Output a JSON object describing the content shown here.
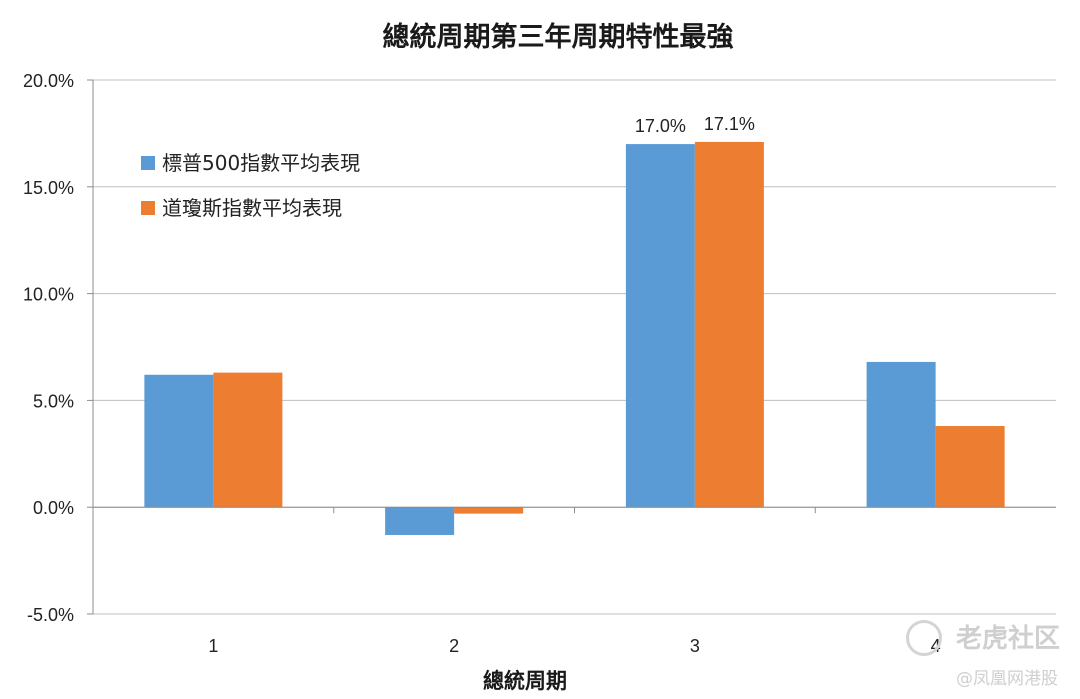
{
  "chart_data": {
    "type": "bar",
    "title": "總統周期第三年周期特性最強",
    "xlabel": "總統周期",
    "ylabel": "",
    "categories": [
      "1",
      "2",
      "3",
      "4"
    ],
    "ylim": [
      -0.05,
      0.2
    ],
    "yticks": [
      -0.05,
      0.0,
      0.05,
      0.1,
      0.15,
      0.2
    ],
    "ytick_labels": [
      "-5.0%",
      "0.0%",
      "5.0%",
      "10.0%",
      "15.0%",
      "20.0%"
    ],
    "grid": true,
    "legend_position": "upper-left",
    "series": [
      {
        "name": "標普500指數平均表現",
        "color": "#5b9bd5",
        "values": [
          0.062,
          -0.013,
          0.17,
          0.068
        ]
      },
      {
        "name": "道瓊斯指數平均表現",
        "color": "#ed7d31",
        "values": [
          0.063,
          -0.003,
          0.171,
          0.038
        ]
      }
    ],
    "data_labels": [
      {
        "series": 0,
        "index": 2,
        "text": "17.0%"
      },
      {
        "series": 1,
        "index": 2,
        "text": "17.1%"
      }
    ]
  },
  "watermark": {
    "line1": "老虎社区",
    "line2": "@凤凰网港股"
  }
}
